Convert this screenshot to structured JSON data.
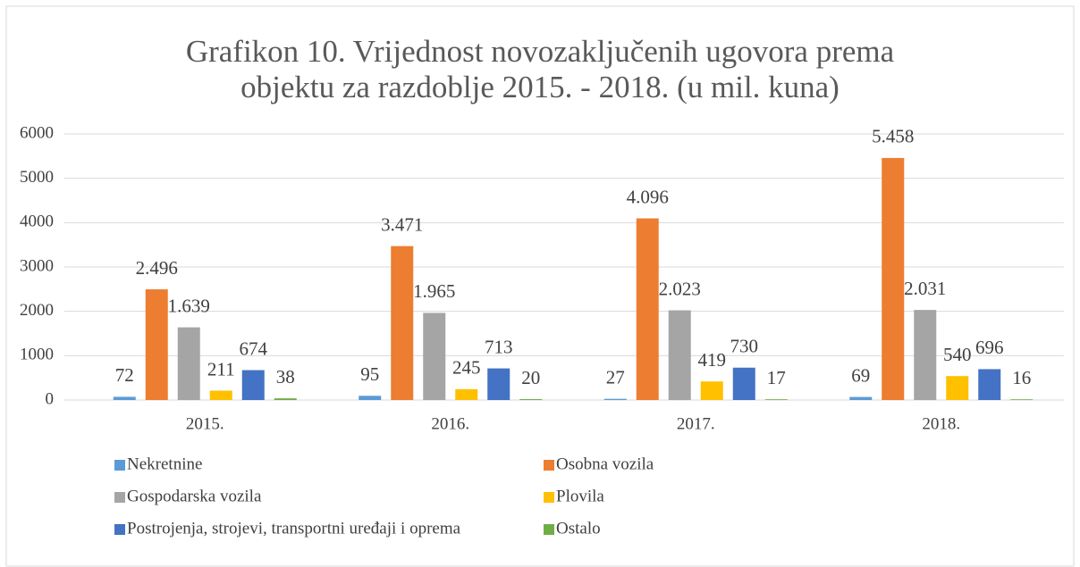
{
  "chart_data": {
    "type": "bar",
    "title": "Grafikon 10. Vrijednost novozaključenih ugovora prema objektu za razdoblje 2015. - 2018. (u mil. kuna)",
    "categories": [
      "2015.",
      "2016.",
      "2017.",
      "2018."
    ],
    "series": [
      {
        "name": "Nekretnine",
        "color": "#5b9bd5",
        "values": [
          72,
          95,
          27,
          69
        ]
      },
      {
        "name": "Osobna vozila",
        "color": "#ed7d31",
        "values": [
          2496,
          3471,
          4096,
          5458
        ],
        "value_labels": [
          "2.496",
          "3.471",
          "4.096",
          "5.458"
        ]
      },
      {
        "name": "Gospodarska vozila",
        "color": "#a5a5a5",
        "values": [
          1639,
          1965,
          2023,
          2031
        ],
        "value_labels": [
          "1.639",
          "1.965",
          "2.023",
          "2.031"
        ]
      },
      {
        "name": "Plovila",
        "color": "#ffc000",
        "values": [
          211,
          245,
          419,
          540
        ]
      },
      {
        "name": "Postrojenja, strojevi, transportni uređaji i oprema",
        "color": "#4472c4",
        "values": [
          674,
          713,
          730,
          696
        ]
      },
      {
        "name": "Ostalo",
        "color": "#70ad47",
        "values": [
          38,
          20,
          17,
          16
        ]
      }
    ],
    "ylim": [
      0,
      6000
    ],
    "yticks": [
      0,
      1000,
      2000,
      3000,
      4000,
      5000,
      6000
    ],
    "grid": true,
    "legend": "bottom"
  }
}
